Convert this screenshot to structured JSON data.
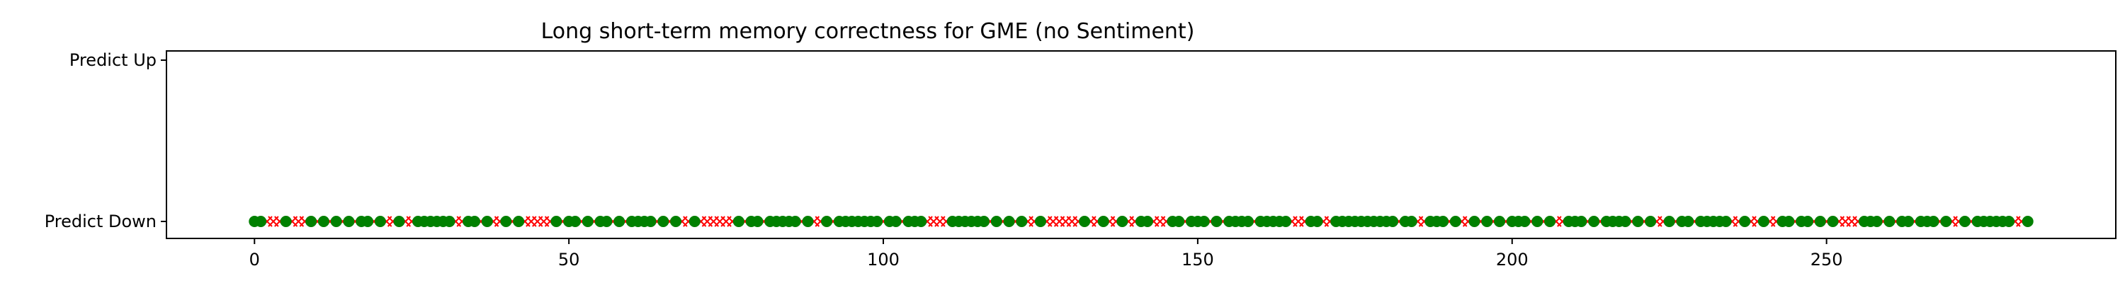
{
  "chart_data": {
    "type": "scatter",
    "title": "Long short-term memory correctness for GME (no Sentiment)",
    "xlabel": "",
    "ylabel": "",
    "x_ticks": [
      0,
      50,
      100,
      150,
      200,
      250
    ],
    "xlim": [
      -14,
      296
    ],
    "y_categories": [
      "Predict Down",
      "Predict Up"
    ],
    "grid": false,
    "legend": "none",
    "colors": {
      "correct": "#008000",
      "incorrect": "#ff0000"
    },
    "series": [
      {
        "marker": "circle",
        "color": "#008000",
        "y": "Predict Down",
        "x": [
          0,
          1,
          5,
          9,
          11,
          13,
          15,
          17,
          18,
          20,
          23,
          26,
          27,
          28,
          29,
          30,
          31,
          34,
          35,
          37,
          40,
          42,
          48,
          50,
          51,
          53,
          55,
          56,
          58,
          60,
          61,
          62,
          63,
          65,
          67,
          70,
          77,
          79,
          80,
          82,
          83,
          84,
          85,
          86,
          88,
          91,
          93,
          94,
          95,
          96,
          97,
          98,
          99,
          101,
          102,
          104,
          105,
          106,
          111,
          112,
          113,
          114,
          115,
          116,
          118,
          120,
          122,
          125,
          132,
          135,
          138,
          141,
          142,
          146,
          147,
          149,
          150,
          151,
          153,
          155,
          156,
          157,
          158,
          160,
          161,
          162,
          163,
          164,
          168,
          169,
          172,
          173,
          174,
          175,
          176,
          177,
          178,
          179,
          180,
          181,
          183,
          184,
          187,
          188,
          189,
          191,
          194,
          196,
          198,
          200,
          201,
          202,
          204,
          206,
          209,
          210,
          211,
          213,
          215,
          216,
          217,
          218,
          220,
          222,
          225,
          227,
          228,
          230,
          231,
          232,
          233,
          234,
          237,
          240,
          243,
          244,
          246,
          247,
          249,
          251,
          256,
          257,
          258,
          260,
          262,
          263,
          265,
          266,
          267,
          269,
          272,
          274,
          275,
          276,
          277,
          278,
          279,
          282
        ]
      },
      {
        "marker": "x",
        "color": "#ff0000",
        "y": "Predict Down",
        "x": [
          2,
          3,
          4,
          6,
          7,
          8,
          10,
          12,
          14,
          16,
          19,
          21,
          22,
          24,
          25,
          32,
          33,
          36,
          38,
          39,
          41,
          43,
          44,
          45,
          46,
          47,
          49,
          52,
          54,
          57,
          59,
          64,
          66,
          68,
          69,
          71,
          72,
          73,
          74,
          75,
          76,
          78,
          81,
          87,
          89,
          90,
          92,
          100,
          103,
          107,
          108,
          109,
          110,
          117,
          119,
          121,
          123,
          124,
          126,
          127,
          128,
          129,
          130,
          131,
          133,
          134,
          136,
          137,
          139,
          140,
          143,
          144,
          145,
          148,
          152,
          154,
          159,
          165,
          166,
          167,
          170,
          171,
          182,
          185,
          186,
          190,
          192,
          193,
          195,
          197,
          199,
          203,
          205,
          207,
          208,
          212,
          214,
          219,
          221,
          223,
          224,
          226,
          229,
          235,
          236,
          238,
          239,
          241,
          242,
          245,
          248,
          250,
          252,
          253,
          254,
          255,
          259,
          261,
          264,
          268,
          270,
          271,
          273,
          280,
          281
        ]
      }
    ]
  }
}
